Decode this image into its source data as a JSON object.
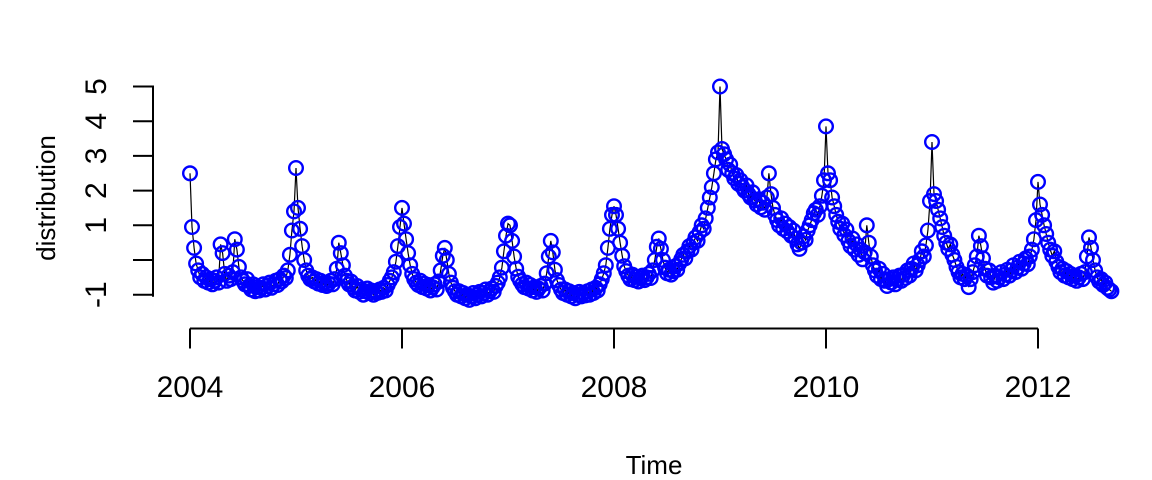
{
  "figure": {
    "background": "#ffffff",
    "axis_color": "#000000"
  },
  "chart_data": {
    "type": "line",
    "title": "",
    "xlabel": "Time",
    "ylabel": "distribution",
    "grid": false,
    "legend": null,
    "xlim": [
      2003.65,
      2013.08
    ],
    "ylim": [
      -1.97,
      5.1
    ],
    "x_ticks": {
      "values": [
        2004,
        2006,
        2008,
        2010,
        2012
      ],
      "labels": [
        "2004",
        "2006",
        "2008",
        "2010",
        "2012"
      ]
    },
    "y_ticks": {
      "values": [
        5,
        4,
        3,
        2,
        1,
        0,
        -1
      ],
      "labels": [
        "5",
        "4",
        "3",
        "2",
        "1",
        "",
        "-1"
      ]
    },
    "marker": {
      "shape": "open-circle",
      "color": "#0000FF"
    },
    "line_color": "#000000",
    "series": [
      {
        "name": "distribution",
        "start_year": 2004,
        "samples_per_year": 52,
        "values_by_year": [
          {
            "year": 2004,
            "values": [
              2.5,
              0.95,
              0.35,
              -0.1,
              -0.3,
              -0.5,
              -0.4,
              -0.6,
              -0.5,
              -0.65,
              -0.55,
              -0.7,
              -0.6,
              -0.5,
              -0.65,
              0.45,
              0.2,
              -0.4,
              -0.6,
              -0.45,
              -0.55,
              -0.35,
              0.6,
              0.3,
              -0.2,
              -0.5,
              -0.6,
              -0.7,
              -0.55,
              -0.75,
              -0.85,
              -0.7,
              -0.9,
              -0.78,
              -0.88,
              -0.8,
              -0.7,
              -0.85,
              -0.75,
              -0.65,
              -0.8,
              -0.7,
              -0.6,
              -0.72,
              -0.55,
              -0.62,
              -0.45,
              -0.52,
              -0.3,
              0.15,
              0.85,
              1.4
            ]
          },
          {
            "year": 2005,
            "values": [
              2.65,
              1.5,
              0.9,
              0.4,
              0.0,
              -0.3,
              -0.45,
              -0.55,
              -0.5,
              -0.62,
              -0.55,
              -0.68,
              -0.6,
              -0.72,
              -0.65,
              -0.75,
              -0.68,
              -0.6,
              -0.7,
              -0.55,
              -0.25,
              0.5,
              0.2,
              -0.15,
              -0.45,
              -0.6,
              -0.7,
              -0.62,
              -0.78,
              -0.88,
              -0.75,
              -0.92,
              -0.85,
              -1.0,
              -0.9,
              -0.82,
              -0.95,
              -0.88,
              -1.0,
              -0.9,
              -0.95,
              -0.85,
              -0.92,
              -0.8,
              -0.88,
              -0.72,
              -0.6,
              -0.5,
              -0.35,
              -0.05,
              0.4,
              0.95
            ]
          },
          {
            "year": 2006,
            "values": [
              1.5,
              1.05,
              0.6,
              0.2,
              -0.15,
              -0.4,
              -0.55,
              -0.65,
              -0.72,
              -0.6,
              -0.78,
              -0.68,
              -0.82,
              -0.72,
              -0.88,
              -0.78,
              -0.7,
              -0.85,
              -0.62,
              -0.3,
              0.12,
              0.35,
              0.0,
              -0.4,
              -0.65,
              -0.8,
              -0.9,
              -1.0,
              -0.9,
              -1.05,
              -0.95,
              -1.1,
              -1.0,
              -1.15,
              -1.05,
              -0.95,
              -1.1,
              -1.0,
              -0.92,
              -1.05,
              -0.95,
              -0.85,
              -1.0,
              -0.9,
              -0.82,
              -0.92,
              -0.75,
              -0.65,
              -0.5,
              -0.22,
              0.25,
              0.7
            ]
          },
          {
            "year": 2007,
            "values": [
              1.05,
              1.0,
              0.55,
              0.1,
              -0.25,
              -0.48,
              -0.6,
              -0.7,
              -0.78,
              -0.65,
              -0.82,
              -0.72,
              -0.88,
              -0.78,
              -0.92,
              -0.82,
              -0.75,
              -0.88,
              -0.68,
              -0.38,
              0.1,
              0.55,
              0.22,
              -0.28,
              -0.58,
              -0.72,
              -0.85,
              -0.95,
              -0.85,
              -1.0,
              -0.9,
              -1.05,
              -0.95,
              -1.1,
              -1.0,
              -0.92,
              -1.05,
              -0.95,
              -1.02,
              -0.9,
              -1.0,
              -0.85,
              -0.95,
              -0.8,
              -0.88,
              -0.7,
              -0.55,
              -0.38,
              -0.15,
              0.35,
              0.9,
              1.3
            ]
          },
          {
            "year": 2008,
            "values": [
              1.55,
              1.3,
              0.9,
              0.5,
              0.12,
              -0.18,
              -0.32,
              -0.45,
              -0.55,
              -0.42,
              -0.58,
              -0.48,
              -0.62,
              -0.52,
              -0.45,
              -0.58,
              -0.5,
              -0.4,
              -0.52,
              -0.3,
              0.0,
              0.38,
              0.62,
              0.32,
              0.0,
              -0.22,
              -0.38,
              -0.28,
              -0.42,
              -0.32,
              -0.18,
              -0.28,
              -0.1,
              0.02,
              0.15,
              0.05,
              0.25,
              0.4,
              0.3,
              0.5,
              0.65,
              0.55,
              0.8,
              1.0,
              0.9,
              1.2,
              1.5,
              1.8,
              2.1,
              2.5,
              2.9,
              3.1
            ]
          },
          {
            "year": 2009,
            "values": [
              5.0,
              3.2,
              3.05,
              2.9,
              2.6,
              2.75,
              2.5,
              2.35,
              2.45,
              2.2,
              2.3,
              2.1,
              2.0,
              2.15,
              1.9,
              1.8,
              1.95,
              1.72,
              1.6,
              1.75,
              1.52,
              1.65,
              1.45,
              1.8,
              2.5,
              1.9,
              1.5,
              1.3,
              1.15,
              1.0,
              1.2,
              0.9,
              1.05,
              0.82,
              0.95,
              0.7,
              0.85,
              0.62,
              0.45,
              0.32,
              0.5,
              0.68,
              0.58,
              0.85,
              1.0,
              1.15,
              1.35,
              1.45,
              1.3,
              1.55,
              1.85,
              2.3
            ]
          },
          {
            "year": 2010,
            "values": [
              3.85,
              2.5,
              2.3,
              1.8,
              1.55,
              1.3,
              1.1,
              0.9,
              1.05,
              0.72,
              0.88,
              0.55,
              0.4,
              0.62,
              0.3,
              0.45,
              0.15,
              0.3,
              0.02,
              0.22,
              1.0,
              0.5,
              0.1,
              -0.15,
              -0.3,
              -0.45,
              -0.25,
              -0.55,
              -0.4,
              -0.6,
              -0.75,
              -0.55,
              -0.65,
              -0.5,
              -0.7,
              -0.55,
              -0.45,
              -0.6,
              -0.42,
              -0.52,
              -0.3,
              -0.45,
              -0.25,
              -0.1,
              -0.3,
              -0.15,
              0.0,
              0.25,
              0.1,
              0.42,
              0.85,
              1.7
            ]
          },
          {
            "year": 2011,
            "values": [
              3.4,
              1.9,
              1.7,
              1.45,
              1.2,
              0.95,
              0.7,
              0.5,
              0.32,
              0.45,
              0.15,
              0.0,
              -0.2,
              -0.35,
              -0.5,
              -0.4,
              -0.55,
              -0.45,
              -0.78,
              -0.55,
              -0.35,
              -0.15,
              0.1,
              0.7,
              0.4,
              0.05,
              -0.25,
              -0.45,
              -0.3,
              -0.5,
              -0.65,
              -0.45,
              -0.6,
              -0.5,
              -0.35,
              -0.55,
              -0.42,
              -0.28,
              -0.45,
              -0.3,
              -0.15,
              -0.35,
              -0.22,
              -0.05,
              -0.25,
              -0.1,
              0.05,
              -0.12,
              0.1,
              0.3,
              0.6,
              1.15
            ]
          },
          {
            "year": 2012,
            "values": [
              2.25,
              1.6,
              1.3,
              1.0,
              0.75,
              0.5,
              0.3,
              0.12,
              0.25,
              -0.05,
              -0.2,
              -0.35,
              -0.25,
              -0.45,
              -0.32,
              -0.5,
              -0.4,
              -0.55,
              -0.45,
              -0.6,
              -0.5,
              -0.4,
              -0.55,
              -0.35,
              0.1,
              0.65,
              0.35,
              0.0,
              -0.3,
              -0.5,
              -0.62,
              -0.55,
              -0.72,
              -0.65,
              -0.8,
              -0.85,
              -0.9
            ]
          }
        ]
      }
    ]
  }
}
